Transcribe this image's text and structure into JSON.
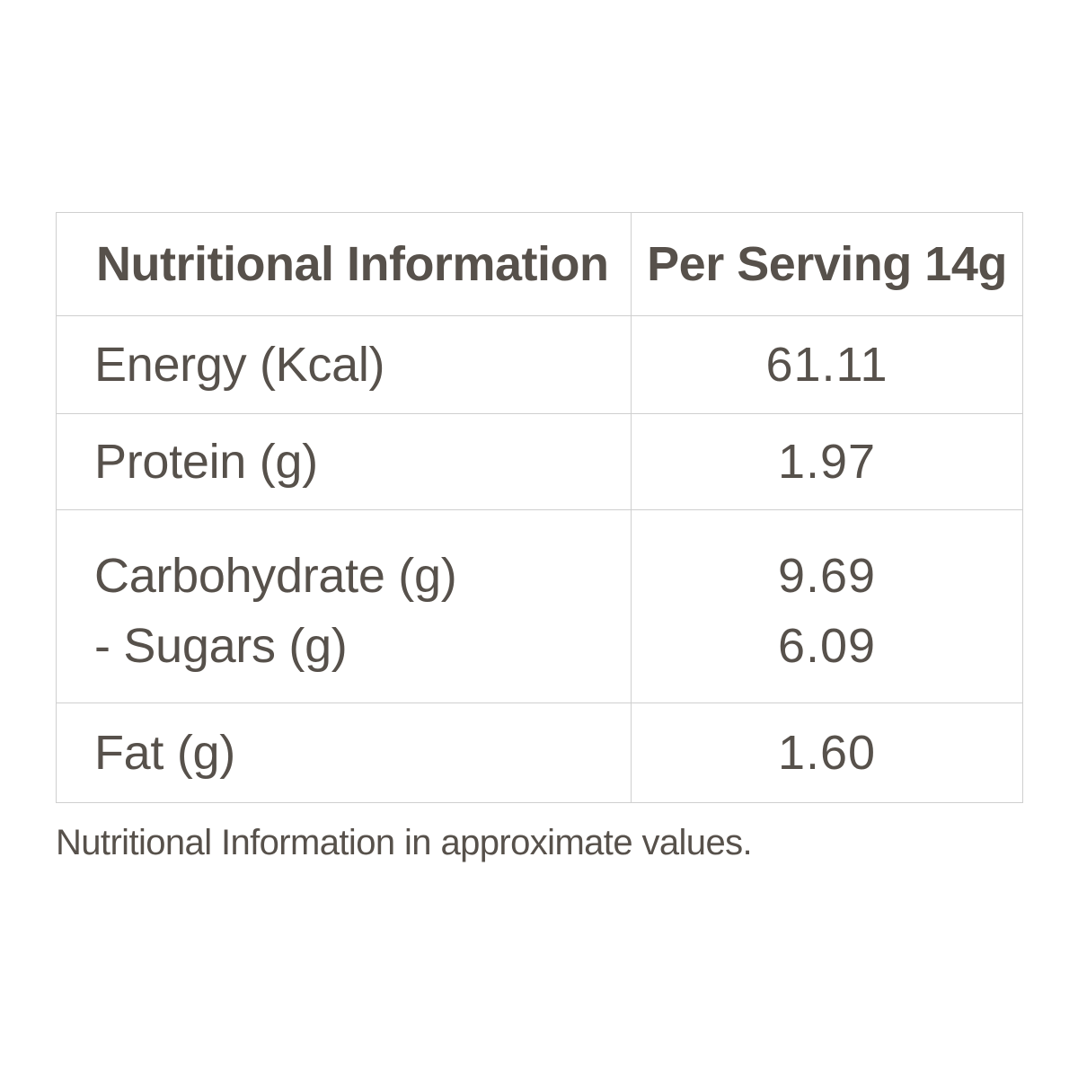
{
  "table": {
    "header": {
      "label": "Nutritional Information",
      "value": "Per Serving 14g"
    },
    "rows": [
      {
        "label": "Energy (Kcal)",
        "value": "61.11"
      },
      {
        "label": "Protein (g)",
        "value": "1.97"
      },
      {
        "label": "Carbohydrate (g)",
        "value": "9.69",
        "sub_label": "- Sugars (g)",
        "sub_value": "6.09"
      },
      {
        "label": "Fat (g)",
        "value": "1.60"
      }
    ]
  },
  "footnote": "Nutritional Information in approximate values.",
  "colors": {
    "text": "#57514b",
    "border": "#cfcfcf",
    "background": "#ffffff"
  }
}
